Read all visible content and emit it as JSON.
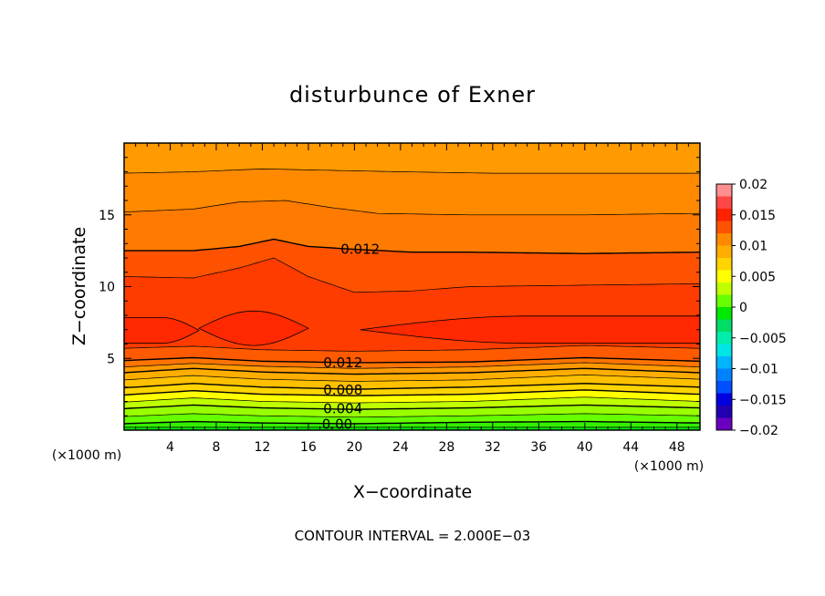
{
  "chart_data": {
    "type": "heatmap",
    "title": "disturbunce of Exner",
    "xlabel": "X−coordinate",
    "ylabel": "Z−coordinate",
    "x_unit": "(×1000 m)",
    "y_unit": "(×1000 m)",
    "xlim": [
      0,
      50
    ],
    "ylim": [
      0,
      20
    ],
    "xticks": [
      4,
      8,
      12,
      16,
      20,
      24,
      28,
      32,
      36,
      40,
      44,
      48
    ],
    "yticks": [
      5,
      10,
      15
    ],
    "footer": "CONTOUR INTERVAL = 2.000E−03",
    "contour_interval": 0.002,
    "colorbar": {
      "ticks": [
        "0.02",
        "0.015",
        "0.01",
        "0.005",
        "0",
        "−0.005",
        "−0.01",
        "−0.015",
        "−0.02"
      ],
      "range": [
        -0.02,
        0.02
      ],
      "levels": [
        0.018,
        0.016,
        0.014,
        0.012,
        0.01,
        0.008,
        0.006,
        0.004,
        0.002,
        0.0,
        -0.002,
        -0.004,
        -0.006,
        -0.008,
        -0.01,
        -0.012,
        -0.014,
        -0.016,
        -0.018,
        -0.02
      ],
      "colors": [
        "#ff8f8f",
        "#ff4646",
        "#ff2200",
        "#ff5200",
        "#ff8a00",
        "#ffae00",
        "#ffd400",
        "#ffff00",
        "#c0ff00",
        "#66ff00",
        "#00e800",
        "#00dd66",
        "#00eeaa",
        "#00e6e6",
        "#00b4ff",
        "#0082ff",
        "#0050ff",
        "#0000e0",
        "#2000b0",
        "#6a00c0"
      ]
    },
    "contour_labels": [
      {
        "text": "0.012",
        "x": 20.5,
        "z": 12.6
      },
      {
        "text": "0.012",
        "x": 19.0,
        "z": 4.7
      },
      {
        "text": "0.008",
        "x": 19.0,
        "z": 2.8
      },
      {
        "text": "0.004",
        "x": 19.0,
        "z": 1.5
      },
      {
        "text": "0.00",
        "x": 18.5,
        "z": 0.4
      }
    ],
    "bands": [
      {
        "value": 0.001,
        "color": "#00e800",
        "z": [
          [
            0,
            0.2
          ],
          [
            10,
            0.2
          ],
          [
            20,
            0.2
          ],
          [
            30,
            0.2
          ],
          [
            40,
            0.2
          ],
          [
            50,
            0.2
          ]
        ]
      },
      {
        "value": 0.002,
        "color": "#33f000",
        "z": [
          [
            0,
            0.45
          ],
          [
            6,
            0.6
          ],
          [
            12,
            0.5
          ],
          [
            20,
            0.45
          ],
          [
            30,
            0.55
          ],
          [
            40,
            0.6
          ],
          [
            50,
            0.5
          ]
        ]
      },
      {
        "value": 0.003,
        "color": "#66ff00",
        "z": [
          [
            0,
            0.95
          ],
          [
            6,
            1.15
          ],
          [
            12,
            1.0
          ],
          [
            20,
            0.9
          ],
          [
            30,
            1.0
          ],
          [
            40,
            1.15
          ],
          [
            50,
            1.0
          ]
        ]
      },
      {
        "value": 0.004,
        "color": "#99ff00",
        "z": [
          [
            0,
            1.5
          ],
          [
            6,
            1.75
          ],
          [
            12,
            1.55
          ],
          [
            20,
            1.45
          ],
          [
            30,
            1.55
          ],
          [
            40,
            1.75
          ],
          [
            50,
            1.55
          ]
        ]
      },
      {
        "value": 0.005,
        "color": "#c0ff00",
        "z": [
          [
            0,
            1.95
          ],
          [
            6,
            2.25
          ],
          [
            12,
            2.0
          ],
          [
            20,
            1.9
          ],
          [
            30,
            2.0
          ],
          [
            40,
            2.3
          ],
          [
            50,
            2.0
          ]
        ]
      },
      {
        "value": 0.006,
        "color": "#ffff00",
        "z": [
          [
            0,
            2.45
          ],
          [
            6,
            2.75
          ],
          [
            12,
            2.5
          ],
          [
            20,
            2.4
          ],
          [
            30,
            2.5
          ],
          [
            40,
            2.8
          ],
          [
            50,
            2.5
          ]
        ]
      },
      {
        "value": 0.008,
        "color": "#ffd400",
        "z": [
          [
            0,
            2.95
          ],
          [
            6,
            3.25
          ],
          [
            12,
            3.0
          ],
          [
            20,
            2.85
          ],
          [
            30,
            3.0
          ],
          [
            40,
            3.25
          ],
          [
            50,
            3.0
          ]
        ]
      },
      {
        "value": 0.009,
        "color": "#ffc000",
        "z": [
          [
            0,
            3.5
          ],
          [
            6,
            3.8
          ],
          [
            12,
            3.55
          ],
          [
            20,
            3.4
          ],
          [
            30,
            3.5
          ],
          [
            40,
            3.85
          ],
          [
            50,
            3.55
          ]
        ]
      },
      {
        "value": 0.01,
        "color": "#ffae00",
        "z": [
          [
            0,
            4.0
          ],
          [
            6,
            4.3
          ],
          [
            12,
            4.05
          ],
          [
            20,
            3.9
          ],
          [
            30,
            4.0
          ],
          [
            40,
            4.3
          ],
          [
            50,
            4.0
          ]
        ]
      },
      {
        "value": 0.011,
        "color": "#ff9a00",
        "z": [
          [
            0,
            4.4
          ],
          [
            6,
            4.65
          ],
          [
            12,
            4.45
          ],
          [
            20,
            4.3
          ],
          [
            30,
            4.4
          ],
          [
            40,
            4.7
          ],
          [
            50,
            4.4
          ]
        ]
      },
      {
        "value": 0.012,
        "color": "#ff7400",
        "z": [
          [
            0,
            4.85
          ],
          [
            6,
            5.05
          ],
          [
            12,
            4.8
          ],
          [
            20,
            4.7
          ],
          [
            30,
            4.75
          ],
          [
            40,
            5.05
          ],
          [
            50,
            4.8
          ]
        ]
      },
      {
        "value": 0.013,
        "color": "#ff5a00",
        "z": [
          [
            0,
            5.7
          ],
          [
            6,
            5.85
          ],
          [
            12,
            5.6
          ],
          [
            20,
            5.5
          ],
          [
            30,
            5.6
          ],
          [
            40,
            5.9
          ],
          [
            50,
            5.7
          ]
        ]
      }
    ],
    "upper_bands": [
      {
        "value": 0.012,
        "color": "#ff5200",
        "z": [
          [
            0,
            10.7
          ],
          [
            6,
            10.6
          ],
          [
            10,
            11.3
          ],
          [
            13,
            12.0
          ],
          [
            16,
            10.7
          ],
          [
            20,
            9.6
          ],
          [
            25,
            9.7
          ],
          [
            30,
            10.0
          ],
          [
            40,
            10.1
          ],
          [
            50,
            10.2
          ]
        ]
      },
      {
        "value": 0.011,
        "color": "#ff7a00",
        "z": [
          [
            0,
            12.5
          ],
          [
            6,
            12.5
          ],
          [
            10,
            12.8
          ],
          [
            13,
            13.3
          ],
          [
            16,
            12.8
          ],
          [
            20,
            12.6
          ],
          [
            25,
            12.4
          ],
          [
            30,
            12.4
          ],
          [
            40,
            12.3
          ],
          [
            50,
            12.4
          ]
        ]
      },
      {
        "value": 0.01,
        "color": "#ff8a00",
        "z": [
          [
            0,
            15.2
          ],
          [
            6,
            15.4
          ],
          [
            10,
            15.9
          ],
          [
            14,
            16.0
          ],
          [
            18,
            15.5
          ],
          [
            22,
            15.1
          ],
          [
            30,
            15.0
          ],
          [
            40,
            15.0
          ],
          [
            50,
            15.1
          ]
        ]
      },
      {
        "value": 0.009,
        "color": "#ff9a00",
        "z": [
          [
            0,
            17.9
          ],
          [
            6,
            18.0
          ],
          [
            12,
            18.2
          ],
          [
            18,
            18.1
          ],
          [
            24,
            18.0
          ],
          [
            32,
            17.9
          ],
          [
            40,
            17.9
          ],
          [
            50,
            17.9
          ]
        ]
      },
      {
        "value": 0.008,
        "color": "#ffa400",
        "z": [
          [
            0,
            20
          ],
          [
            50,
            20
          ]
        ]
      }
    ],
    "core_regions": [
      {
        "value": 0.014,
        "color": "#ff2800",
        "x": [
          0,
          6.5
        ],
        "zc": 6.95,
        "half": 0.9
      },
      {
        "value": 0.014,
        "color": "#ff2800",
        "x": [
          6.5,
          16.0
        ],
        "zc": 7.1,
        "half": 1.2
      },
      {
        "value": 0.014,
        "color": "#ff2800",
        "x": [
          20.5,
          50
        ],
        "zc": 7.0,
        "half": 0.95
      }
    ]
  }
}
